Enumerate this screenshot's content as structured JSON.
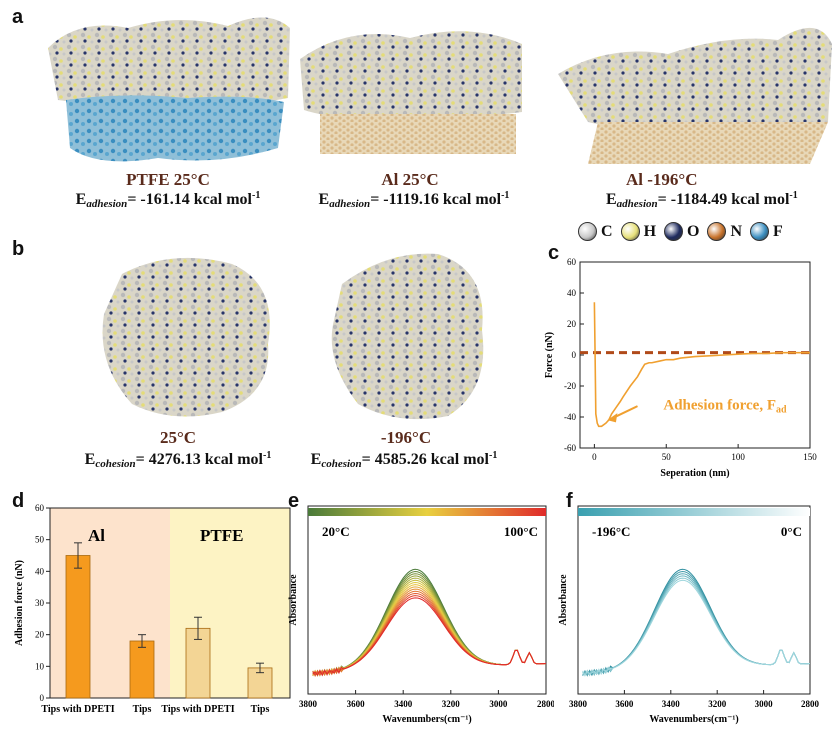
{
  "panels": {
    "a": {
      "label": "a",
      "items": [
        {
          "title": "PTFE 25°C",
          "energy_prefix": "E",
          "energy_sub": "adhesion",
          "energy_value": "= -161.14 kcal mol",
          "energy_sup": "-1"
        },
        {
          "title": "Al 25°C",
          "energy_prefix": "E",
          "energy_sub": "adhesion",
          "energy_value": "= -1119.16 kcal mol",
          "energy_sup": "-1"
        },
        {
          "title": "Al -196°C",
          "energy_prefix": "E",
          "energy_sub": "adhesion",
          "energy_value": "= -1184.49 kcal mol",
          "energy_sup": "-1"
        }
      ],
      "atom_legend": [
        {
          "symbol": "C",
          "color": "#c8c8c8"
        },
        {
          "symbol": "H",
          "color": "#e6e07a"
        },
        {
          "symbol": "O",
          "color": "#1e2a5e"
        },
        {
          "symbol": "N",
          "color": "#c8722a"
        },
        {
          "symbol": "F",
          "color": "#3a8ec0"
        }
      ]
    },
    "b": {
      "label": "b",
      "items": [
        {
          "title": "25°C",
          "energy_prefix": "E",
          "energy_sub": "cohesion",
          "energy_value": "= 4276.13 kcal mol",
          "energy_sup": "-1"
        },
        {
          "title": "-196°C",
          "energy_prefix": "E",
          "energy_sub": "cohesion",
          "energy_value": "= 4585.26 kcal mol",
          "energy_sup": "-1"
        }
      ]
    },
    "c": {
      "label": "c"
    },
    "d": {
      "label": "d"
    },
    "e": {
      "label": "e"
    },
    "f": {
      "label": "f"
    }
  },
  "chart_data": [
    {
      "id": "c",
      "type": "line",
      "xlabel": "Seperation (nm)",
      "ylabel": "Force (nN)",
      "xlim": [
        -10,
        150
      ],
      "ylim": [
        -60,
        60
      ],
      "xticks": [
        0,
        50,
        100,
        150
      ],
      "yticks": [
        -60,
        -40,
        -20,
        0,
        20,
        40,
        60
      ],
      "series": [
        {
          "color": "#f0a030",
          "x": [
            0,
            0.5,
            1,
            2,
            3,
            5,
            8,
            10,
            12,
            15,
            18,
            20,
            25,
            30,
            33,
            35,
            38,
            40,
            45,
            50,
            55,
            60,
            65,
            70,
            80,
            90,
            100,
            110,
            120,
            130,
            140,
            150
          ],
          "y": [
            34,
            0,
            -38,
            -44,
            -46,
            -46,
            -44,
            -42,
            -38,
            -34,
            -30,
            -27,
            -20,
            -14,
            -9,
            -6,
            -5,
            -5,
            -4,
            -3,
            -3,
            -2,
            -1.5,
            -1,
            -0.5,
            0,
            0.5,
            1,
            1,
            1.5,
            1.5,
            1.5
          ]
        }
      ],
      "reference_line": {
        "y": 1.5,
        "color": "#b04a1a"
      },
      "annotation": {
        "text": "Adhesion force, F",
        "sub": "ad",
        "color": "#f0a030"
      }
    },
    {
      "id": "d",
      "type": "bar",
      "ylabel": "Adhesion force (nN)",
      "ylim": [
        0,
        60
      ],
      "yticks": [
        0,
        10,
        20,
        30,
        40,
        50,
        60
      ],
      "groups": [
        {
          "label": "Al",
          "bg": "#fde3cc"
        },
        {
          "label": "PTFE",
          "bg": "#fdf3c4"
        }
      ],
      "categories": [
        "Tips with DPETI",
        "Tips",
        "Tips with DPETI",
        "Tips"
      ],
      "values": [
        45,
        18,
        22,
        9.5
      ],
      "errors": [
        4,
        2,
        3.5,
        1.5
      ],
      "colors": [
        "#f59a1e",
        "#f59a1e",
        "#f3d595",
        "#f3d595"
      ]
    },
    {
      "id": "e",
      "type": "line",
      "xlabel": "Wavenumbers(cm⁻¹)",
      "ylabel": "Absorbance",
      "xlim": [
        3800,
        2800
      ],
      "xticks": [
        3800,
        3600,
        3400,
        3200,
        3000,
        2800
      ],
      "colorbar": {
        "left": "20°C",
        "right": "100°C",
        "colors": [
          "#4a7a3a",
          "#e8d040",
          "#e02a2a"
        ]
      },
      "n_series": 14
    },
    {
      "id": "f",
      "type": "line",
      "xlabel": "Wavenumbers(cm⁻¹)",
      "ylabel": "Absorbance",
      "xlim": [
        3800,
        2800
      ],
      "xticks": [
        3800,
        3600,
        3400,
        3200,
        3000,
        2800
      ],
      "colorbar": {
        "left": "-196°C",
        "right": "0°C",
        "colors": [
          "#3aa0b0",
          "#ffffff"
        ]
      },
      "n_series": 6
    }
  ]
}
